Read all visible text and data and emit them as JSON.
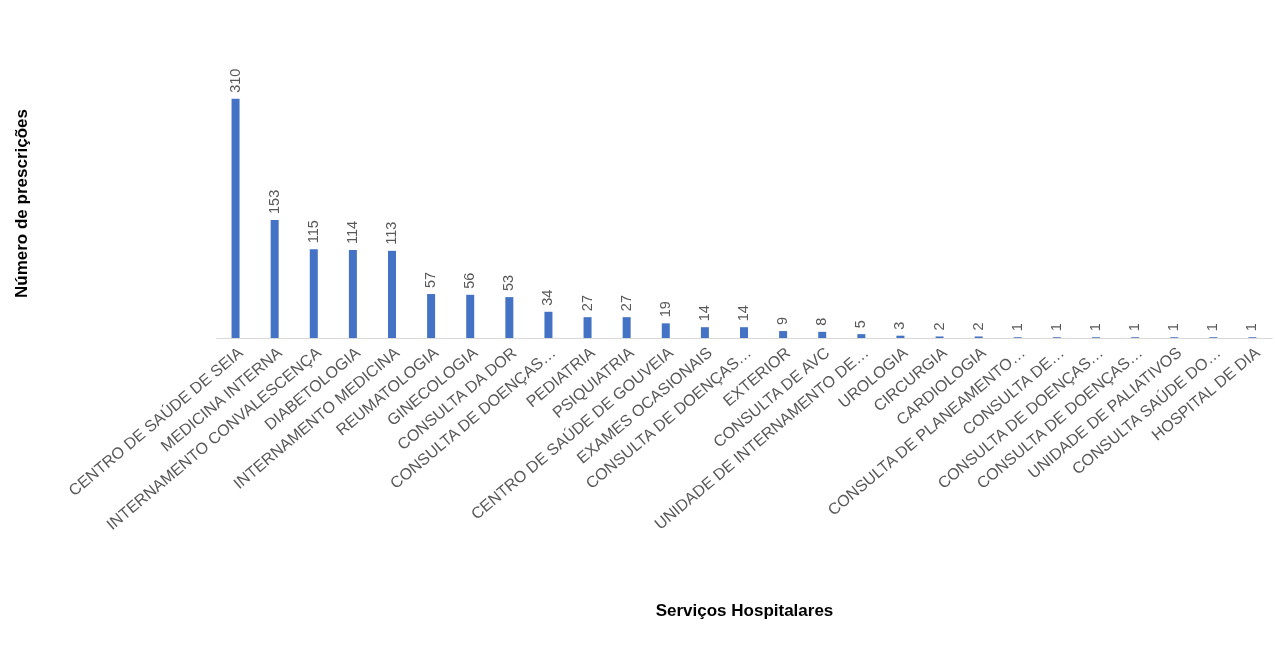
{
  "chart_data": {
    "type": "bar",
    "xlabel": "Serviços Hospitalares",
    "ylabel": "Número de prescrições",
    "categories": [
      "CENTRO DE SAÚDE DE SEIA",
      "MEDICINA INTERNA",
      "INTERNAMENTO CONVALESCENÇA",
      "DIABETOLOGIA",
      "INTERNAMENTO MEDICINA",
      "REUMATOLOGIA",
      "GINECOLOGIA",
      "CONSULTA DA DOR",
      "CONSULTA DE DOENÇAS…",
      "PEDIATRIA",
      "PSIQUIATRIA",
      "CENTRO DE SAÚDE DE GOUVEIA",
      "EXAMES OCASIONAIS",
      "CONSULTA DE DOENÇAS…",
      "EXTERIOR",
      "CONSULTA DE AVC",
      "UNIDADE DE INTERNAMENTO DE…",
      "UROLOGIA",
      "CIRCURGIA",
      "CARDIOLOGIA",
      "CONSULTA DE PLANEAMENTO…",
      "CONSULTA DE…",
      "CONSULTA DE DOENÇAS…",
      "CONSULTA DE DOENÇAS…",
      "UNIDADE DE PALIATIVOS",
      "CONSULTA SAÚDE DO…",
      "HOSPITAL DE DIA"
    ],
    "values": [
      310,
      153,
      115,
      114,
      113,
      57,
      56,
      53,
      34,
      27,
      27,
      19,
      14,
      14,
      9,
      8,
      5,
      3,
      2,
      2,
      1,
      1,
      1,
      1,
      1,
      1,
      1
    ],
    "color": "#4472c4",
    "data_labels": true,
    "tick_labels": "x"
  }
}
